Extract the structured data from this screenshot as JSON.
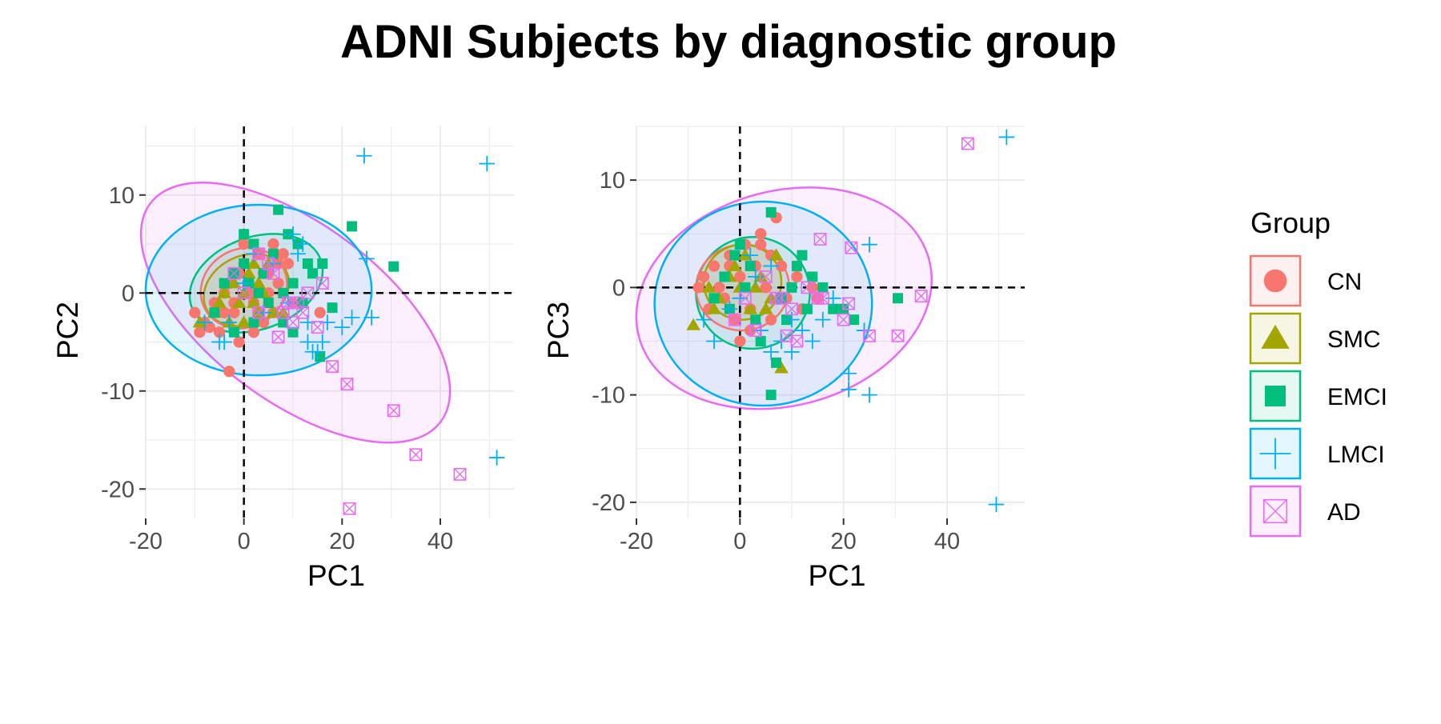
{
  "title": "ADNI Subjects by diagnostic group",
  "legend": {
    "title": "Group",
    "placement": "right",
    "entries": [
      {
        "label": "CN",
        "color": "#F8766D",
        "shape": "circle"
      },
      {
        "label": "SMC",
        "color": "#A3A500",
        "shape": "triangle"
      },
      {
        "label": "EMCI",
        "color": "#00BF7D",
        "shape": "square"
      },
      {
        "label": "LMCI",
        "color": "#00B0F6",
        "shape": "plus"
      },
      {
        "label": "AD",
        "color": "#E76BF3",
        "shape": "square-x"
      }
    ]
  },
  "chart_data": [
    {
      "type": "scatter",
      "xlabel": "PC1",
      "ylabel": "PC2",
      "xlim": [
        -20,
        55
      ],
      "ylim": [
        -23,
        17
      ],
      "xticks": [
        -20,
        0,
        20,
        40
      ],
      "yticks": [
        -20,
        -10,
        0,
        10
      ],
      "grid": true,
      "reference_lines": {
        "x": 0,
        "y": 0,
        "style": "dashed"
      },
      "ellipses": [
        {
          "group": "AD",
          "cx": 10.5,
          "cy": -2.0,
          "rx": 37,
          "ry": 9,
          "angle_deg": -37
        },
        {
          "group": "LMCI",
          "cx": 3.0,
          "cy": 0.3,
          "rx": 23,
          "ry": 8.7,
          "angle_deg": 0
        },
        {
          "group": "EMCI",
          "cx": 2.5,
          "cy": 1.0,
          "rx": 14,
          "ry": 4.7,
          "angle_deg": 20
        },
        {
          "group": "SMC",
          "cx": 0.5,
          "cy": 0.3,
          "rx": 9,
          "ry": 3.5,
          "angle_deg": 25
        },
        {
          "group": "CN",
          "cx": 0.0,
          "cy": 0.5,
          "rx": 9,
          "ry": 4,
          "angle_deg": 28
        }
      ],
      "series": [
        {
          "name": "CN",
          "points": [
            [
              -10,
              -2
            ],
            [
              -8,
              -3
            ],
            [
              -6,
              -1
            ],
            [
              -5,
              -4
            ],
            [
              -4,
              0
            ],
            [
              -3,
              1
            ],
            [
              -2,
              -2
            ],
            [
              -1,
              2
            ],
            [
              0,
              3
            ],
            [
              1,
              1
            ],
            [
              2,
              -1
            ],
            [
              3,
              4
            ],
            [
              4,
              2
            ],
            [
              5,
              0
            ],
            [
              6,
              5
            ],
            [
              7,
              3
            ],
            [
              8,
              4
            ],
            [
              -7,
              -3.5
            ],
            [
              -3,
              -8
            ],
            [
              -1,
              -5
            ],
            [
              2,
              -4
            ],
            [
              4,
              -3
            ],
            [
              6,
              -2
            ],
            [
              9,
              3
            ],
            [
              3,
              -2
            ],
            [
              -9,
              -4
            ],
            [
              15.5,
              -2
            ],
            [
              0,
              5
            ],
            [
              -2,
              -1
            ],
            [
              5,
              2
            ],
            [
              7,
              1
            ],
            [
              1,
              0
            ],
            [
              -4,
              -2
            ],
            [
              10,
              -1
            ]
          ]
        },
        {
          "name": "SMC",
          "points": [
            [
              -9,
              -3
            ],
            [
              -6,
              -2
            ],
            [
              -4,
              0
            ],
            [
              -2,
              1
            ],
            [
              0,
              0
            ],
            [
              1,
              2
            ],
            [
              2,
              -1
            ],
            [
              3,
              1
            ],
            [
              5,
              3
            ],
            [
              6,
              -2
            ],
            [
              -3,
              -3
            ],
            [
              -1,
              -1
            ],
            [
              4,
              0
            ],
            [
              8,
              -2
            ],
            [
              2,
              3
            ],
            [
              -5,
              -1
            ],
            [
              0,
              -3
            ],
            [
              3,
              -2
            ]
          ]
        },
        {
          "name": "EMCI",
          "points": [
            [
              -6,
              -2
            ],
            [
              -4,
              1
            ],
            [
              -2,
              2
            ],
            [
              0,
              3
            ],
            [
              2,
              5
            ],
            [
              4,
              2
            ],
            [
              6,
              4
            ],
            [
              7,
              8.5
            ],
            [
              9,
              6
            ],
            [
              11,
              5
            ],
            [
              13,
              3
            ],
            [
              12,
              -1
            ],
            [
              10,
              1
            ],
            [
              8,
              -3
            ],
            [
              5,
              -1
            ],
            [
              3,
              0
            ],
            [
              1,
              1
            ],
            [
              0,
              6
            ],
            [
              22,
              6.8
            ],
            [
              30.5,
              2.7
            ],
            [
              18,
              -1.5
            ],
            [
              15.5,
              -6.5
            ],
            [
              10,
              -4
            ],
            [
              14,
              2
            ],
            [
              8,
              0
            ],
            [
              -2,
              -4
            ],
            [
              16,
              3
            ],
            [
              2,
              -3
            ]
          ]
        },
        {
          "name": "LMCI",
          "points": [
            [
              -8,
              -3
            ],
            [
              -5,
              -5
            ],
            [
              -3,
              -3
            ],
            [
              0,
              1
            ],
            [
              2,
              4
            ],
            [
              4,
              -2
            ],
            [
              6,
              3
            ],
            [
              9,
              -1
            ],
            [
              11,
              4
            ],
            [
              13,
              -3
            ],
            [
              15,
              -6
            ],
            [
              16,
              -5
            ],
            [
              17,
              -3
            ],
            [
              20,
              -3.5
            ],
            [
              22,
              -2.5
            ],
            [
              24.5,
              14
            ],
            [
              25,
              3.5
            ],
            [
              26,
              -2.5
            ],
            [
              49.5,
              13.2
            ],
            [
              51.5,
              -16.8
            ],
            [
              12,
              5
            ],
            [
              13,
              -5
            ],
            [
              14,
              -6
            ],
            [
              -4,
              -5
            ],
            [
              10,
              6
            ]
          ]
        },
        {
          "name": "AD",
          "points": [
            [
              -2,
              2
            ],
            [
              0,
              0
            ],
            [
              3,
              4
            ],
            [
              5,
              3
            ],
            [
              7,
              -4.5
            ],
            [
              9,
              -1
            ],
            [
              11,
              -1
            ],
            [
              13,
              0
            ],
            [
              15,
              -3.5
            ],
            [
              16,
              1
            ],
            [
              18,
              -7.5
            ],
            [
              21,
              -9.3
            ],
            [
              30.5,
              -12
            ],
            [
              35,
              -16.5
            ],
            [
              44,
              -18.5
            ],
            [
              21.5,
              -22
            ],
            [
              8,
              -2
            ],
            [
              6,
              2
            ],
            [
              12,
              -2
            ],
            [
              10,
              -3
            ],
            [
              3,
              -2
            ]
          ]
        }
      ]
    },
    {
      "type": "scatter",
      "xlabel": "PC1",
      "ylabel": "PC3",
      "xlim": [
        -20,
        55
      ],
      "ylim": [
        -21.5,
        15
      ],
      "xticks": [
        -20,
        0,
        20,
        40
      ],
      "yticks": [
        -20,
        -10,
        0,
        10
      ],
      "grid": true,
      "reference_lines": {
        "x": 0,
        "y": 0,
        "style": "dashed"
      },
      "ellipses": [
        {
          "group": "AD",
          "cx": 8.5,
          "cy": -1.0,
          "rx": 29,
          "ry": 10,
          "angle_deg": 15
        },
        {
          "group": "LMCI",
          "cx": 4.5,
          "cy": -1.5,
          "rx": 21,
          "ry": 9.5,
          "angle_deg": 0
        },
        {
          "group": "EMCI",
          "cx": 2.5,
          "cy": -0.5,
          "rx": 11,
          "ry": 5.2,
          "angle_deg": 3
        },
        {
          "group": "CN",
          "cx": 0.5,
          "cy": 0.0,
          "rx": 9,
          "ry": 4.0,
          "angle_deg": 5
        },
        {
          "group": "SMC",
          "cx": 0.5,
          "cy": 0.5,
          "rx": 7.5,
          "ry": 3.5,
          "angle_deg": 5
        }
      ],
      "series": [
        {
          "name": "CN",
          "points": [
            [
              -8,
              0
            ],
            [
              -6,
              -2
            ],
            [
              -5,
              2
            ],
            [
              -3,
              -1
            ],
            [
              -2,
              3
            ],
            [
              -1,
              -3
            ],
            [
              0,
              1
            ],
            [
              1,
              4
            ],
            [
              2,
              -2
            ],
            [
              3,
              2
            ],
            [
              4,
              5
            ],
            [
              5,
              0
            ],
            [
              6,
              -3
            ],
            [
              7,
              6.5
            ],
            [
              8,
              2
            ],
            [
              9,
              -1
            ],
            [
              11,
              1
            ],
            [
              14,
              0
            ],
            [
              15,
              -1
            ],
            [
              -7,
              1
            ],
            [
              -4,
              0
            ],
            [
              2,
              -4
            ],
            [
              0,
              -5
            ],
            [
              4,
              4
            ],
            [
              6,
              3
            ],
            [
              12,
              -2
            ],
            [
              -2,
              2
            ]
          ]
        },
        {
          "name": "SMC",
          "points": [
            [
              -9,
              -3.5
            ],
            [
              -6,
              0
            ],
            [
              -4,
              -1
            ],
            [
              -2,
              1
            ],
            [
              0,
              0
            ],
            [
              1,
              3
            ],
            [
              2,
              -2
            ],
            [
              3,
              0
            ],
            [
              5,
              -2
            ],
            [
              8,
              -7.5
            ],
            [
              -5,
              -2
            ],
            [
              -1,
              2
            ],
            [
              4,
              1
            ],
            [
              6,
              -1
            ],
            [
              7,
              3
            ]
          ]
        },
        {
          "name": "EMCI",
          "points": [
            [
              -5,
              -1
            ],
            [
              -3,
              1
            ],
            [
              -1,
              3
            ],
            [
              0,
              4
            ],
            [
              2,
              2
            ],
            [
              4,
              -5
            ],
            [
              6,
              7
            ],
            [
              7,
              -7
            ],
            [
              6,
              -10
            ],
            [
              8,
              -1
            ],
            [
              10,
              0
            ],
            [
              11,
              2
            ],
            [
              12,
              3
            ],
            [
              13,
              -2
            ],
            [
              14,
              1
            ],
            [
              18,
              -2
            ],
            [
              20,
              -2
            ],
            [
              22,
              -3
            ],
            [
              30.5,
              -1
            ],
            [
              3,
              -3
            ],
            [
              1,
              0
            ],
            [
              -2,
              -2
            ],
            [
              9,
              -3
            ],
            [
              16,
              0
            ]
          ]
        },
        {
          "name": "LMCI",
          "points": [
            [
              -7,
              -3
            ],
            [
              -5,
              -5
            ],
            [
              -2,
              -2
            ],
            [
              0,
              -1
            ],
            [
              2,
              3
            ],
            [
              4,
              -4
            ],
            [
              6,
              -6
            ],
            [
              8,
              -5
            ],
            [
              10,
              -3
            ],
            [
              12,
              -4
            ],
            [
              14,
              -5
            ],
            [
              16,
              -3
            ],
            [
              21,
              -8
            ],
            [
              21,
              -9.5
            ],
            [
              25,
              -10
            ],
            [
              25,
              4
            ],
            [
              24,
              -4
            ],
            [
              51.5,
              14
            ],
            [
              49.5,
              -20.2
            ],
            [
              3,
              1
            ],
            [
              10,
              -6
            ],
            [
              18,
              -1
            ],
            [
              6,
              2
            ]
          ]
        },
        {
          "name": "AD",
          "points": [
            [
              -1,
              -3
            ],
            [
              1,
              -1
            ],
            [
              3,
              -4
            ],
            [
              5,
              1
            ],
            [
              7,
              -1
            ],
            [
              9,
              -4.5
            ],
            [
              11,
              -5
            ],
            [
              13,
              0
            ],
            [
              15,
              -1
            ],
            [
              16,
              -1
            ],
            [
              20,
              -3
            ],
            [
              21,
              -1.5
            ],
            [
              21.5,
              3.7
            ],
            [
              15.5,
              4.5
            ],
            [
              25,
              -4.5
            ],
            [
              30.5,
              -4.5
            ],
            [
              35,
              -0.8
            ],
            [
              44,
              13.4
            ],
            [
              8,
              -1
            ],
            [
              10,
              -2
            ]
          ]
        }
      ]
    }
  ]
}
